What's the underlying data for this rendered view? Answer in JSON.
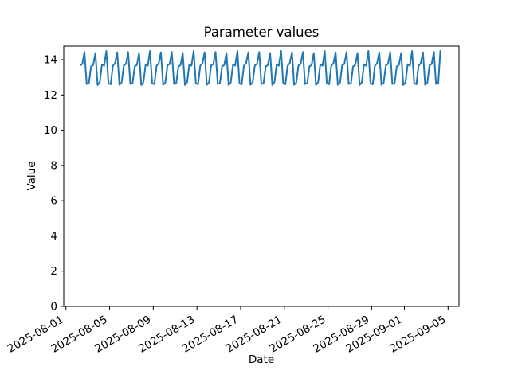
{
  "figure": {
    "background": "#ffffff"
  },
  "chart_data": {
    "type": "line",
    "title": "Parameter values",
    "xlabel": "Date",
    "ylabel": "Value",
    "line_color": "#1f77b4",
    "axis_color": "#000000",
    "legend": "none",
    "grid": false,
    "x_epoch": "2025-08-01",
    "x_start_day_offset": 1.3,
    "x_step_days": 0.2,
    "xlim_days": [
      -0.2,
      36.0
    ],
    "ylim": [
      0,
      14.77
    ],
    "yticks": [
      0,
      2,
      4,
      6,
      8,
      10,
      12,
      14
    ],
    "xticks": [
      {
        "day": 0,
        "label": "2025-08-01"
      },
      {
        "day": 4,
        "label": "2025-08-05"
      },
      {
        "day": 8,
        "label": "2025-08-09"
      },
      {
        "day": 12,
        "label": "2025-08-13"
      },
      {
        "day": 16,
        "label": "2025-08-17"
      },
      {
        "day": 20,
        "label": "2025-08-21"
      },
      {
        "day": 24,
        "label": "2025-08-25"
      },
      {
        "day": 28,
        "label": "2025-08-29"
      },
      {
        "day": 31,
        "label": "2025-09-01"
      },
      {
        "day": 35,
        "label": "2025-09-05"
      }
    ],
    "values": [
      13.68,
      13.76,
      14.44,
      12.62,
      12.66,
      13.62,
      13.7,
      14.38,
      12.56,
      12.72,
      13.74,
      13.66,
      14.5,
      12.66,
      12.6,
      13.66,
      13.8,
      14.42,
      12.58,
      12.7,
      13.68,
      13.76,
      14.44,
      12.62,
      12.66,
      13.62,
      13.7,
      14.38,
      12.56,
      12.72,
      13.74,
      13.66,
      14.5,
      12.66,
      12.6,
      13.66,
      13.8,
      14.42,
      12.58,
      12.7,
      13.68,
      13.76,
      14.44,
      12.62,
      12.66,
      13.62,
      13.7,
      14.38,
      12.56,
      12.72,
      13.74,
      13.66,
      14.5,
      12.66,
      12.6,
      13.66,
      13.8,
      14.42,
      12.58,
      12.7,
      13.68,
      13.76,
      14.44,
      12.62,
      12.66,
      13.62,
      13.7,
      14.38,
      12.56,
      12.72,
      13.74,
      13.66,
      14.5,
      12.66,
      12.6,
      13.66,
      13.8,
      14.42,
      12.58,
      12.7,
      13.68,
      13.76,
      14.44,
      12.62,
      12.66,
      13.62,
      13.7,
      14.38,
      12.56,
      12.72,
      13.74,
      13.66,
      14.5,
      12.66,
      12.6,
      13.66,
      13.8,
      14.42,
      12.58,
      12.7,
      13.68,
      13.76,
      14.44,
      12.62,
      12.66,
      13.62,
      13.7,
      14.38,
      12.56,
      12.72,
      13.74,
      13.66,
      14.5,
      12.66,
      12.6,
      13.66,
      13.8,
      14.42,
      12.58,
      12.7,
      13.68,
      13.76,
      14.44,
      12.62,
      12.66,
      13.62,
      13.7,
      14.38,
      12.56,
      12.72,
      13.74,
      13.66,
      14.5,
      12.66,
      12.6,
      13.66,
      13.8,
      14.42,
      12.58,
      12.7,
      13.68,
      13.76,
      14.44,
      12.62,
      12.66,
      13.62,
      13.7,
      14.38,
      12.56,
      12.72,
      13.74,
      13.66,
      14.5,
      12.66,
      12.6,
      13.66,
      13.8,
      14.42,
      12.58,
      12.7,
      13.68,
      13.76,
      14.44,
      12.62,
      12.66,
      14.55
    ]
  }
}
